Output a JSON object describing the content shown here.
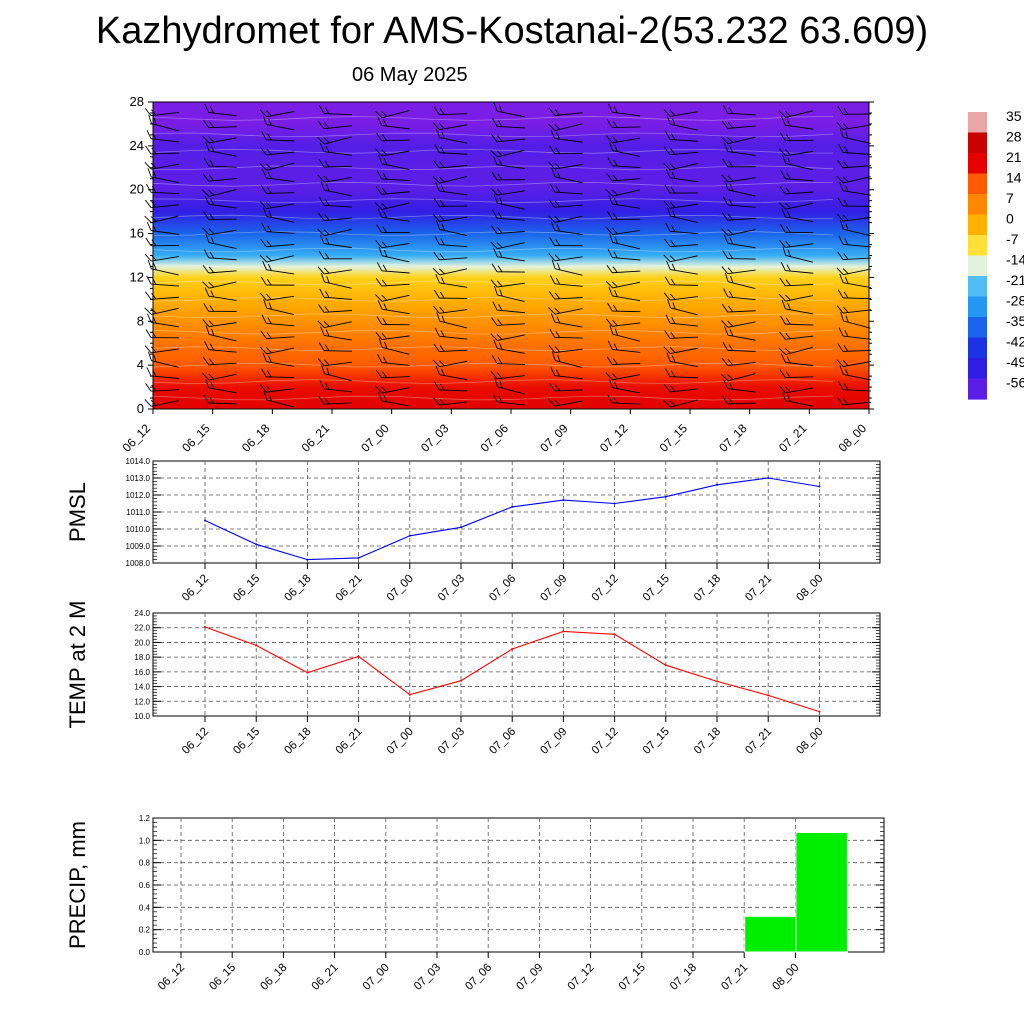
{
  "title": "Kazhydromet for AMS-Kostanai-2(53.232 63.609)",
  "subtitle": "06 May 2025",
  "chart_data": [
    {
      "type": "heatmap",
      "title": "",
      "xlabel": "",
      "ylabel": "",
      "x_ticks": [
        "06_12",
        "06_15",
        "06_18",
        "06_21",
        "07_00",
        "07_03",
        "07_06",
        "07_09",
        "07_12",
        "07_15",
        "07_18",
        "07_21",
        "08_00"
      ],
      "y_ticks": [
        "0",
        "4",
        "8",
        "12",
        "16",
        "20",
        "24",
        "28"
      ],
      "ylim": [
        0,
        28
      ],
      "colorbar_labels": [
        "35",
        "28",
        "21",
        "14",
        "7",
        "0",
        "-7",
        "-14",
        "-21",
        "-28",
        "-35",
        "-42",
        "-49",
        "-56"
      ],
      "colorbar_range": [
        -56,
        35
      ],
      "temperature_profile": [
        {
          "level": 0,
          "value": 22
        },
        {
          "level": 2,
          "value": 20
        },
        {
          "level": 4,
          "value": 14
        },
        {
          "level": 6,
          "value": 10
        },
        {
          "level": 8,
          "value": 5
        },
        {
          "level": 10,
          "value": 0
        },
        {
          "level": 12,
          "value": -5
        },
        {
          "level": 13,
          "value": -14
        },
        {
          "level": 14,
          "value": -24
        },
        {
          "level": 16,
          "value": -35
        },
        {
          "level": 18,
          "value": -50
        },
        {
          "level": 20,
          "value": -56
        },
        {
          "level": 22,
          "value": -56
        },
        {
          "level": 24,
          "value": -55
        },
        {
          "level": 26,
          "value": -60
        },
        {
          "level": 28,
          "value": -60
        }
      ],
      "colors": {
        "warm": "#e60000",
        "cold": "#7a1ee6"
      }
    },
    {
      "type": "line",
      "ylabel": "PMSL",
      "x": [
        "06_12",
        "06_15",
        "06_18",
        "06_21",
        "07_00",
        "07_03",
        "07_06",
        "07_09",
        "07_12",
        "07_15",
        "07_18",
        "07_21",
        "08_00"
      ],
      "values": [
        1010.5,
        1009.1,
        1008.2,
        1008.3,
        1009.6,
        1010.1,
        1011.3,
        1011.7,
        1011.5,
        1011.9,
        1012.6,
        1013.0,
        1012.5
      ],
      "ylim": [
        1008.0,
        1014.0
      ],
      "y_ticks": [
        "1008.0",
        "1009.0",
        "1010.0",
        "1011.0",
        "1012.0",
        "1013.0",
        "1014.0"
      ],
      "grid": true,
      "color": "#0000ff"
    },
    {
      "type": "line",
      "ylabel": "TEMP at 2 M",
      "x": [
        "06_12",
        "06_15",
        "06_18",
        "06_21",
        "07_00",
        "07_03",
        "07_06",
        "07_09",
        "07_12",
        "07_15",
        "07_18",
        "07_21",
        "08_00"
      ],
      "values": [
        22.1,
        19.6,
        15.9,
        18.1,
        12.9,
        14.8,
        19.1,
        21.5,
        21.1,
        16.9,
        14.7,
        12.8,
        10.6
      ],
      "ylim": [
        10.0,
        24.0
      ],
      "y_ticks": [
        "10.0",
        "12.0",
        "14.0",
        "16.0",
        "18.0",
        "20.0",
        "22.0",
        "24.0"
      ],
      "grid": true,
      "color": "#ff0000"
    },
    {
      "type": "bar",
      "ylabel": "PRECIP, mm",
      "categories": [
        "06_12",
        "06_15",
        "06_18",
        "06_21",
        "07_00",
        "07_03",
        "07_06",
        "07_09",
        "07_12",
        "07_15",
        "07_18",
        "07_21",
        "08_00"
      ],
      "values": [
        0,
        0,
        0,
        0,
        0,
        0,
        0,
        0,
        0,
        0,
        0,
        0.32,
        1.07
      ],
      "ylim": [
        0.0,
        1.2
      ],
      "y_ticks": [
        "0.0",
        "0.2",
        "0.4",
        "0.6",
        "0.8",
        "1.0",
        "1.2"
      ],
      "grid": true,
      "color": "#00ee00"
    }
  ]
}
